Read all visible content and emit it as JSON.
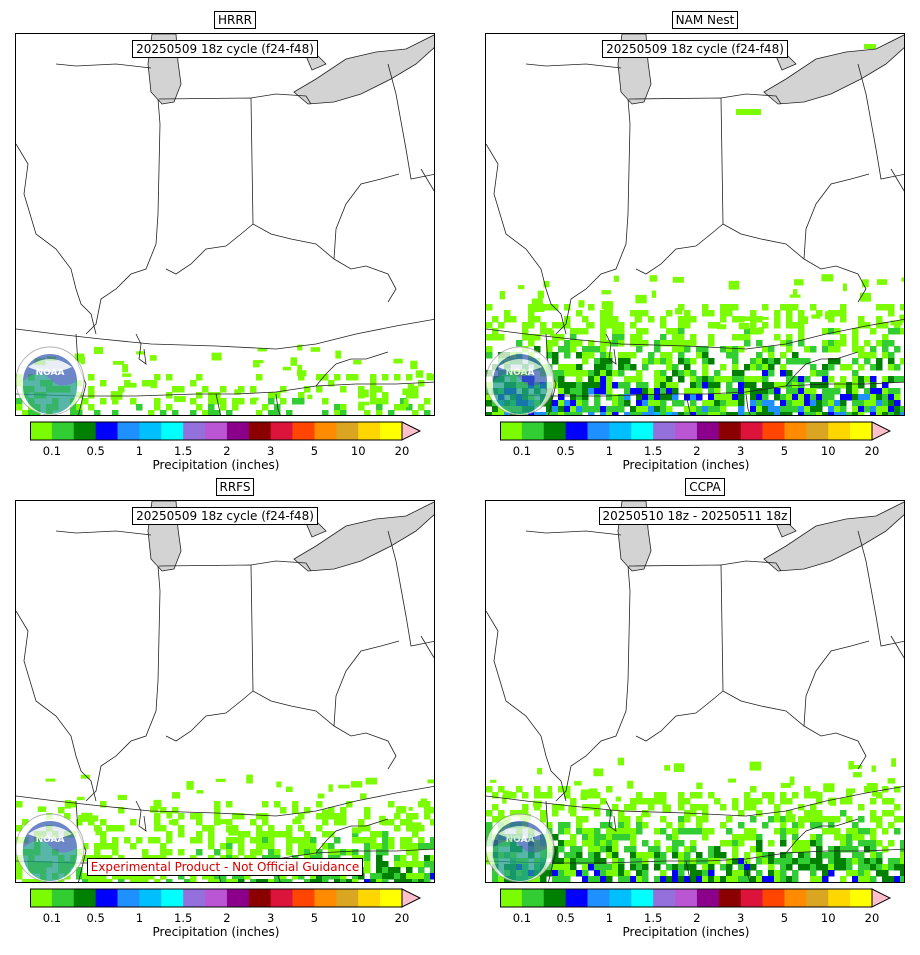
{
  "panels": [
    {
      "title": "HRRR",
      "subtitle": "20250509 18z cycle (f24-f48)",
      "disclaimer": ""
    },
    {
      "title": "NAM Nest",
      "subtitle": "20250509 18z cycle (f24-f48)",
      "disclaimer": ""
    },
    {
      "title": "RRFS",
      "subtitle": "20250509 18z cycle (f24-f48)",
      "disclaimer": "Experimental Product - Not Official Guidance"
    },
    {
      "title": "CCPA",
      "subtitle": "20250510 18z - 20250511 18z",
      "disclaimer": ""
    }
  ],
  "colorbar": {
    "label": "Precipitation (inches)",
    "tick_labels": [
      "0.1",
      "0.5",
      "1",
      "1.5",
      "2",
      "3",
      "5",
      "10",
      "20"
    ],
    "colors": [
      "#7cfc00",
      "#32cd32",
      "#008000",
      "#0000ff",
      "#1e90ff",
      "#00bfff",
      "#00ffff",
      "#9370db",
      "#ba55d3",
      "#8b008b",
      "#8b0000",
      "#dc143c",
      "#ff4500",
      "#ff8c00",
      "#daa520",
      "#ffd700",
      "#ffff00"
    ],
    "extend_color": "#ffc0cb"
  },
  "logo": {
    "text": "NOAA"
  }
}
